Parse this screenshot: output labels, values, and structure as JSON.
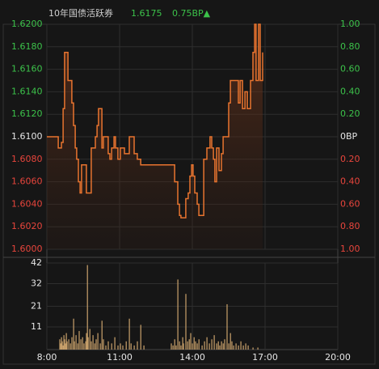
{
  "header": {
    "title": "10年国债活跃券",
    "price": "1.6175",
    "change": "0.75BP▲"
  },
  "chart_data": [
    {
      "type": "line",
      "color": "#e8742f",
      "grid": true,
      "xlim": [
        8,
        20
      ],
      "ylim": [
        1.6,
        1.62
      ],
      "yticks": [
        {
          "value": 1.62,
          "label": "1.6200"
        },
        {
          "value": 1.618,
          "label": "1.6180"
        },
        {
          "value": 1.616,
          "label": "1.6160"
        },
        {
          "value": 1.614,
          "label": "1.6140"
        },
        {
          "value": 1.612,
          "label": "1.6120"
        },
        {
          "value": 1.61,
          "label": "1.6100"
        },
        {
          "value": 1.608,
          "label": "1.6080"
        },
        {
          "value": 1.606,
          "label": "1.6060"
        },
        {
          "value": 1.604,
          "label": "1.6040"
        },
        {
          "value": 1.602,
          "label": "1.6020"
        },
        {
          "value": 1.6,
          "label": "1.6000"
        }
      ],
      "y2lim": [
        -1,
        1
      ],
      "y2ticks": [
        {
          "value": 1,
          "label": "1.00"
        },
        {
          "value": 0.8,
          "label": "0.80"
        },
        {
          "value": 0.6,
          "label": "0.60"
        },
        {
          "value": 0.4,
          "label": "0.40"
        },
        {
          "value": 0.2,
          "label": "0.20"
        },
        {
          "value": 0,
          "label": "0BP"
        },
        {
          "value": -0.2,
          "label": "0.20"
        },
        {
          "value": -0.4,
          "label": "0.40"
        },
        {
          "value": -0.6,
          "label": "0.60"
        },
        {
          "value": -0.8,
          "label": "0.80"
        },
        {
          "value": -1,
          "label": "1.00"
        }
      ],
      "x": [
        8.0,
        8.4,
        8.47,
        8.6,
        8.67,
        8.73,
        8.83,
        8.87,
        8.97,
        9.03,
        9.1,
        9.17,
        9.23,
        9.3,
        9.37,
        9.43,
        9.57,
        9.63,
        9.77,
        9.83,
        10.0,
        10.07,
        10.13,
        10.2,
        10.27,
        10.33,
        10.47,
        10.53,
        10.6,
        10.67,
        10.77,
        10.83,
        10.93,
        11.03,
        11.13,
        11.2,
        11.33,
        11.4,
        11.53,
        11.6,
        11.73,
        11.87,
        13.17,
        13.27,
        13.4,
        13.47,
        13.53,
        13.7,
        13.73,
        13.83,
        13.9,
        13.97,
        14.03,
        14.1,
        14.2,
        14.27,
        14.4,
        14.47,
        14.6,
        14.73,
        14.8,
        14.87,
        14.93,
        15.0,
        15.1,
        15.2,
        15.27,
        15.4,
        15.5,
        15.57,
        15.83,
        15.9,
        15.97,
        16.07,
        16.17,
        16.27,
        16.4,
        16.5,
        16.57,
        16.63,
        16.73,
        16.8,
        16.9
      ],
      "values": [
        1.61,
        1.61,
        1.609,
        1.6095,
        1.6125,
        1.6175,
        1.6175,
        1.615,
        1.615,
        1.613,
        1.611,
        1.609,
        1.608,
        1.606,
        1.605,
        1.6075,
        1.6075,
        1.605,
        1.605,
        1.609,
        1.61,
        1.611,
        1.6125,
        1.6125,
        1.609,
        1.61,
        1.61,
        1.6085,
        1.608,
        1.609,
        1.61,
        1.609,
        1.608,
        1.609,
        1.609,
        1.6085,
        1.6085,
        1.61,
        1.61,
        1.6085,
        1.608,
        1.6075,
        1.6075,
        1.606,
        1.604,
        1.603,
        1.6028,
        1.6028,
        1.6045,
        1.605,
        1.6065,
        1.6075,
        1.6065,
        1.605,
        1.604,
        1.603,
        1.603,
        1.608,
        1.609,
        1.61,
        1.609,
        1.608,
        1.606,
        1.609,
        1.607,
        1.6085,
        1.61,
        1.61,
        1.613,
        1.615,
        1.615,
        1.613,
        1.615,
        1.6125,
        1.614,
        1.6125,
        1.615,
        1.6175,
        1.62,
        1.615,
        1.62,
        1.615,
        1.6175
      ]
    },
    {
      "type": "bar",
      "color": "#c9a16b",
      "grid": true,
      "xlim": [
        8,
        20
      ],
      "xticks": [
        {
          "value": 8,
          "label": "8:00"
        },
        {
          "value": 11,
          "label": "11:00"
        },
        {
          "value": 14,
          "label": "14:00"
        },
        {
          "value": 17,
          "label": "17:00"
        },
        {
          "value": 20,
          "label": "20:00"
        }
      ],
      "ylim": [
        0,
        42
      ],
      "yticks": [
        42,
        32,
        21,
        11
      ],
      "x": [
        8.53,
        8.57,
        8.6,
        8.63,
        8.67,
        8.7,
        8.73,
        8.77,
        8.8,
        8.83,
        8.9,
        8.97,
        9.03,
        9.1,
        9.13,
        9.2,
        9.27,
        9.33,
        9.4,
        9.47,
        9.53,
        9.6,
        9.63,
        9.67,
        9.7,
        9.77,
        9.83,
        9.9,
        9.97,
        10.03,
        10.1,
        10.2,
        10.27,
        10.33,
        10.43,
        10.53,
        10.67,
        10.8,
        10.93,
        11.03,
        11.13,
        11.27,
        11.4,
        11.47,
        11.6,
        11.73,
        11.87,
        12.0,
        13.13,
        13.2,
        13.27,
        13.33,
        13.4,
        13.47,
        13.53,
        13.6,
        13.63,
        13.73,
        13.8,
        13.87,
        13.93,
        14.0,
        14.07,
        14.13,
        14.2,
        14.27,
        14.4,
        14.5,
        14.6,
        14.7,
        14.8,
        14.9,
        15.0,
        15.07,
        15.13,
        15.2,
        15.27,
        15.33,
        15.43,
        15.5,
        15.57,
        15.63,
        15.7,
        15.8,
        15.9,
        16.0,
        16.1,
        16.2,
        16.3,
        16.5,
        16.7
      ],
      "values": [
        5,
        3,
        6,
        4,
        2,
        7,
        5,
        3,
        8,
        4,
        5,
        3,
        6,
        15,
        4,
        7,
        3,
        9,
        5,
        6,
        3,
        4,
        8,
        41,
        6,
        10,
        4,
        7,
        3,
        5,
        8,
        3,
        14,
        5,
        2,
        4,
        3,
        6,
        2,
        3,
        2,
        4,
        15,
        3,
        2,
        4,
        12,
        2,
        3,
        2,
        5,
        2,
        34,
        4,
        2,
        6,
        3,
        27,
        4,
        5,
        8,
        3,
        6,
        4,
        3,
        5,
        2,
        4,
        6,
        3,
        5,
        7,
        3,
        4,
        2,
        4,
        3,
        5,
        22,
        3,
        8,
        4,
        2,
        3,
        2,
        4,
        2,
        3,
        2,
        1,
        1
      ]
    }
  ]
}
